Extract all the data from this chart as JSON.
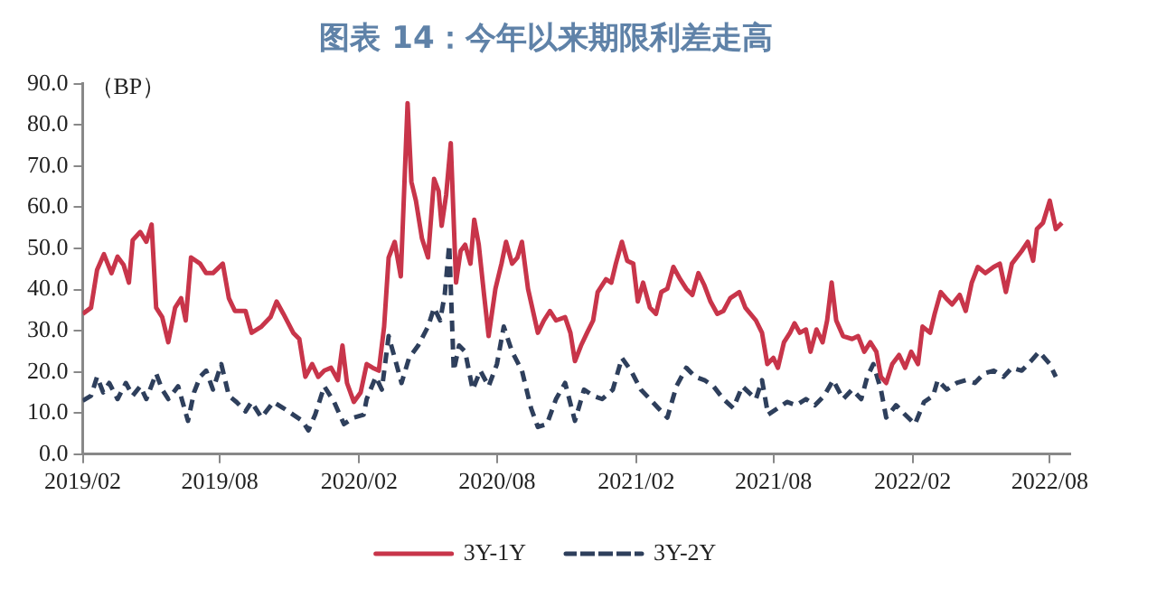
{
  "chart_data": {
    "type": "line",
    "title": "图表 14：今年以来期限利差走高",
    "ylabel": "（BP）",
    "legend": "bottom",
    "grid": false,
    "xlim": [
      "2019-02-01",
      "2022-08-28"
    ],
    "xticks": [
      {
        "value": "2019-02-01",
        "label": "2019/02"
      },
      {
        "value": "2019-08-01",
        "label": "2019/08"
      },
      {
        "value": "2020-02-01",
        "label": "2020/02"
      },
      {
        "value": "2020-08-01",
        "label": "2020/08"
      },
      {
        "value": "2021-02-01",
        "label": "2021/02"
      },
      {
        "value": "2021-08-01",
        "label": "2021/08"
      },
      {
        "value": "2022-02-01",
        "label": "2022/02"
      },
      {
        "value": "2022-08-01",
        "label": "2022/08"
      }
    ],
    "ylim": [
      0,
      90
    ],
    "yticks": [
      {
        "value": 0,
        "label": "0.0"
      },
      {
        "value": 10,
        "label": "10.0"
      },
      {
        "value": 20,
        "label": "20.0"
      },
      {
        "value": 30,
        "label": "30.0"
      },
      {
        "value": 40,
        "label": "40.0"
      },
      {
        "value": 50,
        "label": "50.0"
      },
      {
        "value": 60,
        "label": "60.0"
      },
      {
        "value": 70,
        "label": "70.0"
      },
      {
        "value": 80,
        "label": "80.0"
      },
      {
        "value": 90,
        "label": "90.0"
      }
    ],
    "series": [
      {
        "name": "3Y-1Y",
        "color": "#c8354a",
        "line_style": "solid",
        "x": [
          "2019-02-01",
          "2019-02-12",
          "2019-02-20",
          "2019-03-01",
          "2019-03-11",
          "2019-03-19",
          "2019-03-27",
          "2019-04-03",
          "2019-04-08",
          "2019-04-18",
          "2019-04-26",
          "2019-05-03",
          "2019-05-09",
          "2019-05-17",
          "2019-05-25",
          "2019-06-03",
          "2019-06-11",
          "2019-06-17",
          "2019-06-24",
          "2019-07-06",
          "2019-07-14",
          "2019-07-23",
          "2019-08-05",
          "2019-08-13",
          "2019-08-21",
          "2019-09-04",
          "2019-09-12",
          "2019-09-25",
          "2019-10-07",
          "2019-10-15",
          "2019-10-24",
          "2019-11-06",
          "2019-11-14",
          "2019-11-22",
          "2019-12-01",
          "2019-12-09",
          "2019-12-17",
          "2019-12-26",
          "2020-01-04",
          "2020-01-10",
          "2020-01-16",
          "2020-01-25",
          "2020-02-03",
          "2020-02-11",
          "2020-02-19",
          "2020-02-27",
          "2020-03-05",
          "2020-03-11",
          "2020-03-19",
          "2020-03-27",
          "2020-04-05",
          "2020-04-10",
          "2020-04-16",
          "2020-04-24",
          "2020-05-02",
          "2020-05-10",
          "2020-05-16",
          "2020-05-20",
          "2020-05-26",
          "2020-06-01",
          "2020-06-08",
          "2020-06-14",
          "2020-06-20",
          "2020-06-27",
          "2020-07-02",
          "2020-07-08",
          "2020-07-15",
          "2020-07-21",
          "2020-07-30",
          "2020-08-07",
          "2020-08-13",
          "2020-08-21",
          "2020-08-28",
          "2020-09-03",
          "2020-09-11",
          "2020-09-24",
          "2020-10-02",
          "2020-10-10",
          "2020-10-18",
          "2020-10-30",
          "2020-11-06",
          "2020-11-12",
          "2020-11-20",
          "2020-11-28",
          "2020-12-06",
          "2020-12-12",
          "2020-12-23",
          "2020-12-30",
          "2021-01-05",
          "2021-01-13",
          "2021-01-20",
          "2021-01-28",
          "2021-02-03",
          "2021-02-10",
          "2021-02-19",
          "2021-02-27",
          "2021-03-06",
          "2021-03-14",
          "2021-03-22",
          "2021-03-31",
          "2021-04-08",
          "2021-04-16",
          "2021-04-24",
          "2021-05-02",
          "2021-05-10",
          "2021-05-19",
          "2021-05-27",
          "2021-06-05",
          "2021-06-17",
          "2021-06-25",
          "2021-07-09",
          "2021-07-17",
          "2021-07-24",
          "2021-08-01",
          "2021-08-07",
          "2021-08-15",
          "2021-08-23",
          "2021-08-29",
          "2021-09-05",
          "2021-09-13",
          "2021-09-19",
          "2021-09-27",
          "2021-10-05",
          "2021-10-11",
          "2021-10-17",
          "2021-10-23",
          "2021-11-01",
          "2021-11-13",
          "2021-11-21",
          "2021-11-29",
          "2021-12-07",
          "2021-12-15",
          "2021-12-21",
          "2021-12-28",
          "2022-01-05",
          "2022-01-14",
          "2022-01-22",
          "2022-01-30",
          "2022-02-08",
          "2022-02-14",
          "2022-02-24",
          "2022-03-02",
          "2022-03-10",
          "2022-03-17",
          "2022-03-25",
          "2022-04-04",
          "2022-04-12",
          "2022-04-20",
          "2022-04-28",
          "2022-05-08",
          "2022-05-19",
          "2022-05-27",
          "2022-06-04",
          "2022-06-12",
          "2022-06-25",
          "2022-07-03",
          "2022-07-10",
          "2022-07-15",
          "2022-07-23",
          "2022-08-01",
          "2022-08-09",
          "2022-08-17"
        ],
        "values": [
          34.1,
          35.6,
          44.8,
          48.6,
          44,
          48,
          46,
          41.7,
          52,
          54,
          51.6,
          55.8,
          35.6,
          33.3,
          27.2,
          35.6,
          37.9,
          32.5,
          47.8,
          46.3,
          44,
          44,
          46.3,
          37.9,
          34.8,
          34.8,
          29.5,
          31,
          33.3,
          37.1,
          34.1,
          29.5,
          28,
          18.8,
          21.9,
          18.8,
          20.3,
          21,
          18,
          26.4,
          17.3,
          12.7,
          15,
          21.9,
          21,
          20.3,
          31,
          47.8,
          51.6,
          43.2,
          85.3,
          66.2,
          61.6,
          52.4,
          47.8,
          66.9,
          63.9,
          55.5,
          63.1,
          75.6,
          41.7,
          49.4,
          50.9,
          46.3,
          57,
          50.9,
          38.7,
          28.7,
          40.2,
          46.3,
          51.6,
          46.3,
          47.8,
          51.6,
          40.2,
          29.5,
          32.5,
          34.8,
          32.5,
          33.3,
          29.5,
          22.6,
          26.4,
          29.5,
          32.5,
          39.4,
          42.5,
          41.7,
          46.3,
          51.6,
          47,
          46.3,
          37.1,
          41.7,
          35.6,
          34.1,
          39.4,
          40.2,
          45.5,
          42.5,
          40.2,
          38.7,
          44,
          41,
          37.1,
          34.1,
          34.8,
          37.9,
          39.4,
          35.6,
          32.5,
          29.5,
          21.9,
          23.4,
          21,
          27.2,
          29.5,
          31.8,
          29.5,
          30.3,
          24.9,
          30.3,
          27.2,
          32.5,
          41.7,
          32.5,
          28.7,
          28,
          28.7,
          24.9,
          27.2,
          24.9,
          18.8,
          17.3,
          21.9,
          24.1,
          21,
          24.9,
          21.9,
          31,
          29.5,
          34.1,
          39.4,
          37.9,
          36.4,
          38.7,
          34.8,
          41.7,
          45.5,
          44,
          45.5,
          46.3,
          39.4,
          46.3,
          49.4,
          51.6,
          47,
          54.7,
          56.2,
          61.6,
          54.7,
          56.2
        ]
      },
      {
        "name": "3Y-2Y",
        "color": "#2e3f5c",
        "line_style": "dashed",
        "x": [
          "2019-02-01",
          "2019-02-12",
          "2019-02-20",
          "2019-02-28",
          "2019-03-08",
          "2019-03-19",
          "2019-03-30",
          "2019-04-08",
          "2019-04-18",
          "2019-04-26",
          "2019-05-09",
          "2019-05-17",
          "2019-05-25",
          "2019-06-07",
          "2019-06-20",
          "2019-06-28",
          "2019-07-06",
          "2019-07-14",
          "2019-07-23",
          "2019-08-03",
          "2019-08-13",
          "2019-08-23",
          "2019-09-04",
          "2019-09-12",
          "2019-09-25",
          "2019-10-11",
          "2019-10-24",
          "2019-11-06",
          "2019-11-18",
          "2019-11-26",
          "2019-12-05",
          "2019-12-17",
          "2019-12-30",
          "2020-01-12",
          "2020-01-25",
          "2020-02-07",
          "2020-02-11",
          "2020-02-23",
          "2020-03-02",
          "2020-03-11",
          "2020-03-19",
          "2020-03-28",
          "2020-04-07",
          "2020-04-19",
          "2020-05-02",
          "2020-05-10",
          "2020-05-18",
          "2020-05-24",
          "2020-05-30",
          "2020-06-05",
          "2020-06-12",
          "2020-06-20",
          "2020-06-30",
          "2020-07-10",
          "2020-07-21",
          "2020-08-01",
          "2020-08-10",
          "2020-08-21",
          "2020-09-03",
          "2020-09-15",
          "2020-09-24",
          "2020-10-06",
          "2020-10-18",
          "2020-10-30",
          "2020-11-12",
          "2020-11-24",
          "2020-12-06",
          "2020-12-18",
          "2021-01-01",
          "2021-01-13",
          "2021-01-25",
          "2021-02-07",
          "2021-02-19",
          "2021-03-02",
          "2021-03-14",
          "2021-03-26",
          "2021-04-08",
          "2021-04-20",
          "2021-05-02",
          "2021-05-14",
          "2021-05-27",
          "2021-06-09",
          "2021-06-21",
          "2021-07-09",
          "2021-07-17",
          "2021-07-25",
          "2021-08-07",
          "2021-08-19",
          "2021-08-31",
          "2021-09-13",
          "2021-09-25",
          "2021-10-07",
          "2021-10-19",
          "2021-11-01",
          "2021-11-13",
          "2021-11-25",
          "2021-12-03",
          "2021-12-11",
          "2021-12-21",
          "2021-12-28",
          "2022-01-10",
          "2022-01-22",
          "2022-02-04",
          "2022-02-16",
          "2022-02-28",
          "2022-03-06",
          "2022-03-18",
          "2022-03-31",
          "2022-04-12",
          "2022-04-24",
          "2022-05-06",
          "2022-05-19",
          "2022-06-01",
          "2022-06-12",
          "2022-06-25",
          "2022-07-07",
          "2022-07-18",
          "2022-08-01",
          "2022-08-09"
        ],
        "values": [
          13,
          14.2,
          18.8,
          15,
          17.3,
          13.4,
          17.3,
          14.2,
          16.5,
          13.4,
          19.6,
          15.7,
          13.4,
          16.5,
          8.1,
          15,
          18.8,
          20.3,
          15.7,
          21.9,
          14.2,
          12.7,
          10.4,
          12.7,
          8.9,
          12.7,
          11.2,
          9.6,
          8.1,
          5.8,
          9.6,
          16.5,
          12.7,
          7.3,
          8.9,
          9.6,
          13.4,
          18.8,
          15.7,
          28.7,
          23.4,
          17.3,
          23.4,
          26.4,
          31,
          35.6,
          32.5,
          38.7,
          50.9,
          20.3,
          26.4,
          24.9,
          15.7,
          20.3,
          16.5,
          21.9,
          31,
          24.9,
          20.3,
          11.2,
          6.6,
          7.3,
          13.4,
          17.3,
          8.1,
          15.7,
          14.2,
          13.4,
          15.7,
          23.4,
          20.3,
          15.7,
          13.4,
          11.2,
          8.9,
          16.5,
          21,
          18.8,
          18,
          16.5,
          13.4,
          11.2,
          16.5,
          13.4,
          18,
          9.6,
          11.2,
          12.7,
          11.9,
          13.4,
          11.9,
          14.2,
          18,
          13.4,
          15.7,
          13.4,
          18.8,
          21.9,
          15.7,
          8.9,
          11.9,
          9.6,
          7.3,
          12.7,
          14.2,
          18,
          15.7,
          17.3,
          18,
          17.3,
          19.6,
          20.3,
          18.8,
          21,
          20.3,
          22.6,
          24.9,
          21.9,
          18.8
        ]
      }
    ]
  }
}
